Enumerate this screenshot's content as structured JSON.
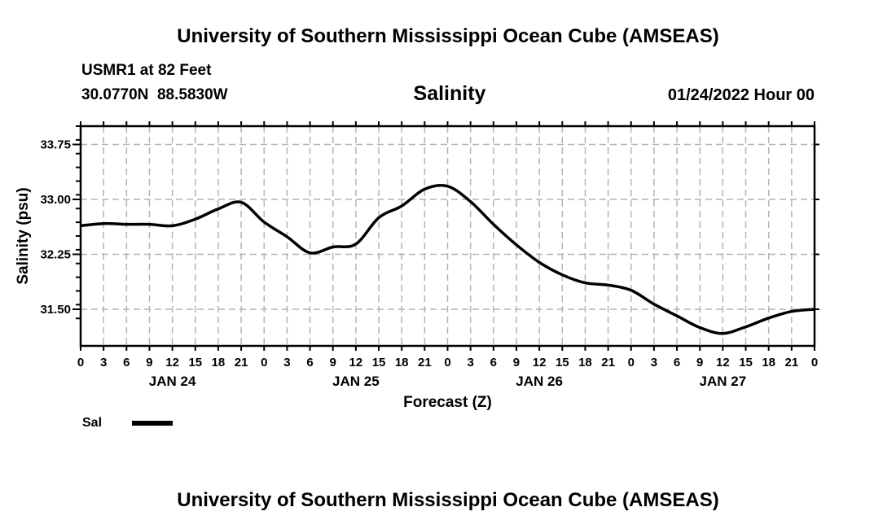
{
  "header": {
    "title": "University of Southern Mississippi Ocean Cube (AMSEAS)",
    "station": "USMR1 at 82 Feet",
    "coordinates": "30.0770N  88.5830W",
    "variable": "Salinity",
    "datetime": "01/24/2022 Hour 00"
  },
  "footer": {
    "title": "University of Southern Mississippi Ocean Cube (AMSEAS)"
  },
  "legend": {
    "label": "Sal",
    "color": "#000000"
  },
  "chart_data": {
    "type": "line",
    "title": "Salinity",
    "xlabel": "Forecast (Z)",
    "ylabel": "Salinity (psu)",
    "xlim": [
      0,
      96
    ],
    "ylim": [
      31.0,
      34.0
    ],
    "grid": true,
    "legend_position": "bottom-left",
    "yticks": [
      31.5,
      32.25,
      33.0,
      33.75
    ],
    "ytick_labels": [
      "31.50",
      "32.25",
      "33.00",
      "33.75"
    ],
    "xticks": [
      0,
      3,
      6,
      9,
      12,
      15,
      18,
      21,
      24,
      27,
      30,
      33,
      36,
      39,
      42,
      45,
      48,
      51,
      54,
      57,
      60,
      63,
      66,
      69,
      72,
      75,
      78,
      81,
      84,
      87,
      90,
      93,
      96
    ],
    "xtick_labels": [
      "0",
      "3",
      "6",
      "9",
      "12",
      "15",
      "18",
      "21",
      "0",
      "3",
      "6",
      "9",
      "12",
      "15",
      "18",
      "21",
      "0",
      "3",
      "6",
      "9",
      "12",
      "15",
      "18",
      "21",
      "0",
      "3",
      "6",
      "9",
      "12",
      "15",
      "18",
      "21",
      "0"
    ],
    "day_labels": [
      {
        "hour": 12,
        "label": "JAN 24"
      },
      {
        "hour": 36,
        "label": "JAN 25"
      },
      {
        "hour": 60,
        "label": "JAN 26"
      },
      {
        "hour": 84,
        "label": "JAN 27"
      }
    ],
    "series": [
      {
        "name": "Sal",
        "x": [
          0,
          3,
          6,
          9,
          12,
          15,
          18,
          21,
          24,
          27,
          30,
          33,
          36,
          39,
          42,
          45,
          48,
          51,
          54,
          57,
          60,
          63,
          66,
          69,
          72,
          75,
          78,
          81,
          84,
          87,
          90,
          93,
          96
        ],
        "values": [
          32.64,
          32.67,
          32.66,
          32.66,
          32.64,
          32.73,
          32.87,
          32.96,
          32.69,
          32.49,
          32.27,
          32.35,
          32.39,
          32.75,
          32.91,
          33.14,
          33.18,
          32.97,
          32.66,
          32.38,
          32.14,
          31.97,
          31.86,
          31.83,
          31.76,
          31.57,
          31.41,
          31.25,
          31.17,
          31.26,
          31.38,
          31.47,
          31.5
        ]
      }
    ]
  }
}
